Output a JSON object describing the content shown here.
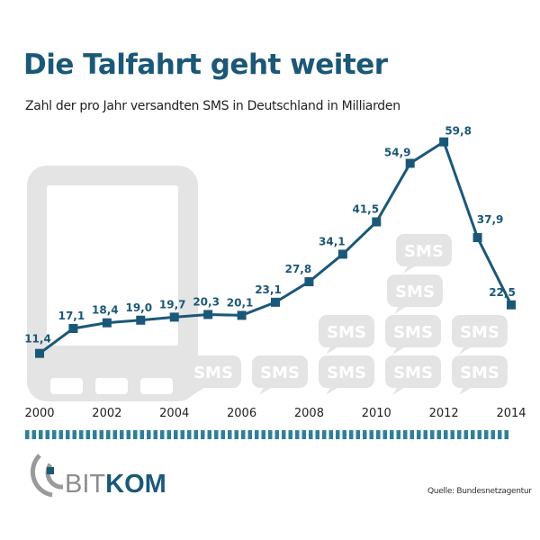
{
  "chart_data": {
    "type": "line",
    "title": "Die Talfahrt geht weiter",
    "subtitle": "Zahl der pro Jahr versandten SMS in Deutschland in Milliarden",
    "x": [
      2000,
      2001,
      2002,
      2003,
      2004,
      2005,
      2006,
      2007,
      2008,
      2009,
      2010,
      2011,
      2012,
      2013,
      2014
    ],
    "values": [
      11.4,
      17.1,
      18.4,
      19.0,
      19.7,
      20.3,
      20.1,
      23.1,
      27.8,
      34.1,
      41.5,
      54.9,
      59.8,
      37.9,
      22.5
    ],
    "data_labels": [
      "11,4",
      "17,1",
      "18,4",
      "19,0",
      "19,7",
      "20,3",
      "20,1",
      "23,1",
      "27,8",
      "34,1",
      "41,5",
      "54,9",
      "59,8",
      "37,9",
      "22,5"
    ],
    "x_tick_labels": [
      "2000",
      "2002",
      "2004",
      "2006",
      "2008",
      "2010",
      "2012",
      "2014"
    ],
    "xlim": [
      2000,
      2014
    ],
    "grid": false,
    "line_color": "#1b5878",
    "background_decoration": "smartphone and SMS bubbles",
    "decoration_text": "SMS"
  },
  "footer": {
    "logo_text": "BITKOM",
    "source": "Quelle: Bundesnetzagentur",
    "divider_color": "#2f7f99"
  }
}
